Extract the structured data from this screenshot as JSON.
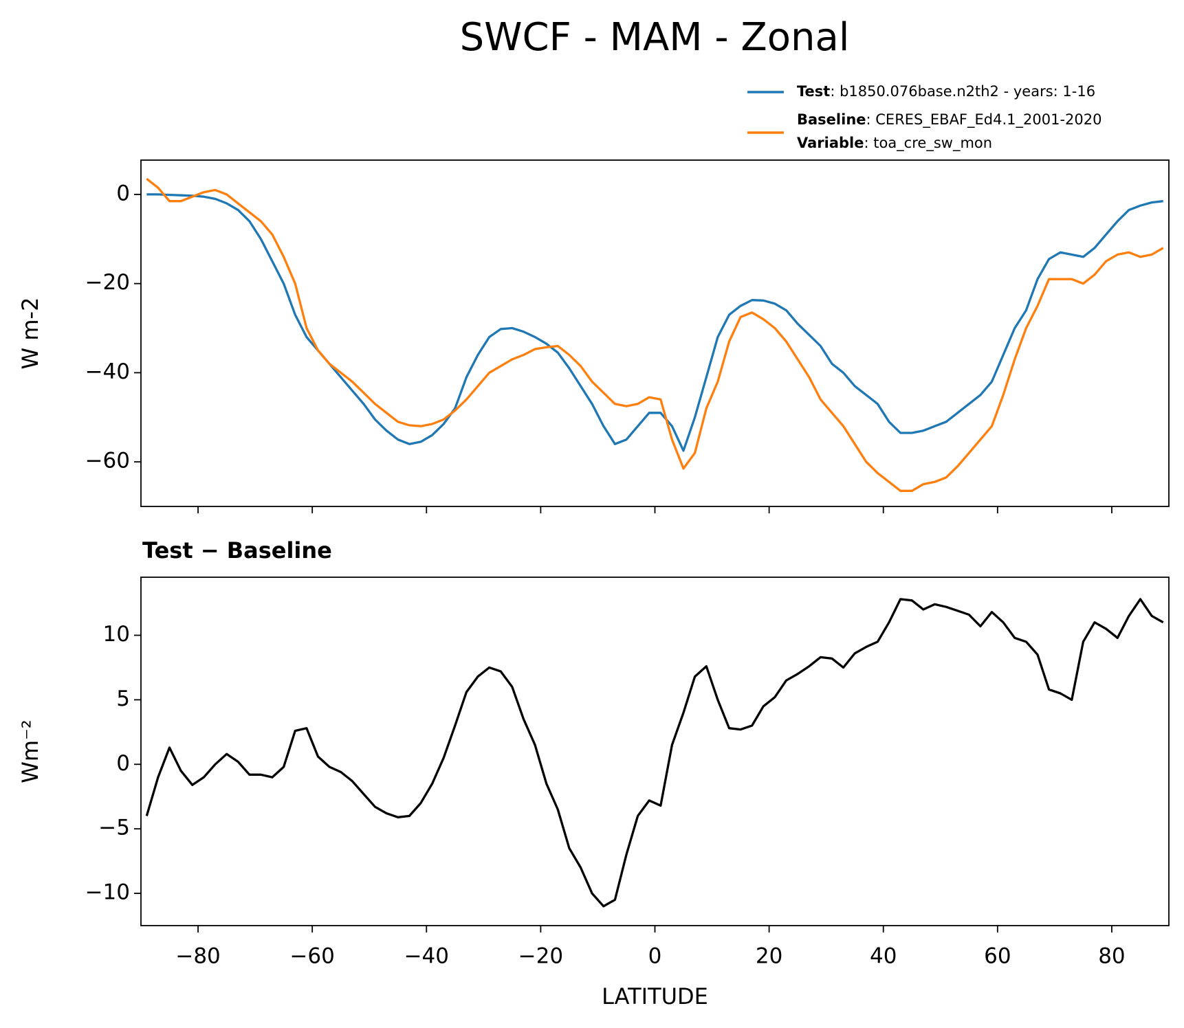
{
  "chart_data": [
    {
      "type": "line",
      "title": "SWCF - MAM - Zonal",
      "ylabel": "W m-2",
      "x": [
        -89,
        -87,
        -85,
        -83,
        -81,
        -79,
        -77,
        -75,
        -73,
        -71,
        -69,
        -67,
        -65,
        -63,
        -61,
        -59,
        -57,
        -55,
        -53,
        -51,
        -49,
        -47,
        -45,
        -43,
        -41,
        -39,
        -37,
        -35,
        -33,
        -31,
        -29,
        -27,
        -25,
        -23,
        -21,
        -19,
        -17,
        -15,
        -13,
        -11,
        -9,
        -7,
        -5,
        -3,
        -1,
        1,
        3,
        5,
        7,
        9,
        11,
        13,
        15,
        17,
        19,
        21,
        23,
        25,
        27,
        29,
        31,
        33,
        35,
        37,
        39,
        41,
        43,
        45,
        47,
        49,
        51,
        53,
        55,
        57,
        59,
        61,
        63,
        65,
        67,
        69,
        71,
        73,
        75,
        77,
        79,
        81,
        83,
        85,
        87,
        89
      ],
      "series": [
        {
          "name": "Test",
          "description": ": b1850.076base.n2th2 - years: 1-16",
          "color": "#1f77b4",
          "values": [
            0,
            0,
            -0.1,
            -0.2,
            -0.3,
            -0.5,
            -1,
            -2,
            -3.5,
            -6,
            -10,
            -15,
            -20,
            -27,
            -32,
            -35,
            -38,
            -41,
            -44,
            -47,
            -50.5,
            -53,
            -55,
            -56,
            -55.5,
            -54,
            -51.5,
            -48,
            -41,
            -36,
            -32,
            -30.2,
            -30,
            -30.8,
            -32,
            -33.5,
            -35.5,
            -39,
            -43,
            -47,
            -52,
            -56,
            -55,
            -52,
            -49,
            -49,
            -52,
            -57.5,
            -50,
            -41,
            -32,
            -27,
            -25,
            -23.7,
            -23.8,
            -24.5,
            -26,
            -29,
            -31.5,
            -34,
            -38,
            -40,
            -43,
            -45,
            -47,
            -51,
            -53.5,
            -53.5,
            -53,
            -52,
            -51,
            -49,
            -47,
            -45,
            -42,
            -36,
            -30,
            -26,
            -19,
            -14.5,
            -13,
            -13.5,
            -14,
            -12,
            -9,
            -6,
            -3.5,
            -2.5,
            -1.8,
            -1.5
          ]
        },
        {
          "name": "Baseline",
          "description": ": CERES_EBAF_Ed4.1_2001-2020",
          "color": "#ff7f0e",
          "values": [
            3.5,
            1.5,
            -1.5,
            -1.5,
            -0.5,
            0.5,
            1,
            0,
            -2,
            -4,
            -6,
            -9,
            -14,
            -20,
            -30,
            -35,
            -38,
            -40,
            -42,
            -44.5,
            -47,
            -49,
            -51,
            -51.8,
            -52,
            -51.5,
            -50.5,
            -48.5,
            -46,
            -43,
            -40,
            -38.5,
            -37,
            -36,
            -34.7,
            -34.3,
            -34,
            -36,
            -38.5,
            -42,
            -44.5,
            -47,
            -47.5,
            -47,
            -45.5,
            -46,
            -55,
            -61.5,
            -58,
            -48,
            -42,
            -33,
            -27.5,
            -26.5,
            -28,
            -30,
            -33,
            -37,
            -41,
            -46,
            -49,
            -52,
            -56,
            -60,
            -62.5,
            -64.5,
            -66.5,
            -66.5,
            -65,
            -64.5,
            -63.5,
            -61,
            -58,
            -55,
            -52,
            -45,
            -37,
            -30,
            -25,
            -19,
            -19,
            -19,
            -20,
            -18,
            -15,
            -13.5,
            -13,
            -14,
            -13.5,
            -12
          ]
        }
      ],
      "legend": {
        "corner": "upper right",
        "variable": {
          "name": "Variable",
          "text": ": toa_cre_sw_mon"
        }
      },
      "xlim": [
        -90,
        90
      ],
      "xticks": [
        -80,
        -60,
        -40,
        -20,
        0,
        20,
        40,
        60,
        80
      ],
      "xticklabels": false,
      "ylim": [
        -70,
        7.7
      ],
      "yticks": [
        0,
        {
          "value": -20,
          "label": "−20"
        },
        {
          "value": -40,
          "label": "−40"
        },
        {
          "value": -60,
          "label": "−60"
        }
      ]
    },
    {
      "type": "line",
      "title": "Test − Baseline",
      "xlabel": "LATITUDE",
      "ylabel": "Wm⁻²",
      "x": [
        -89,
        -87,
        -85,
        -83,
        -81,
        -79,
        -77,
        -75,
        -73,
        -71,
        -69,
        -67,
        -65,
        -63,
        -61,
        -59,
        -57,
        -55,
        -53,
        -51,
        -49,
        -47,
        -45,
        -43,
        -41,
        -39,
        -37,
        -35,
        -33,
        -31,
        -29,
        -27,
        -25,
        -23,
        -21,
        -19,
        -17,
        -15,
        -13,
        -11,
        -9,
        -7,
        -5,
        -3,
        -1,
        1,
        3,
        5,
        7,
        9,
        11,
        13,
        15,
        17,
        19,
        21,
        23,
        25,
        27,
        29,
        31,
        33,
        35,
        37,
        39,
        41,
        43,
        45,
        47,
        49,
        51,
        53,
        55,
        57,
        59,
        61,
        63,
        65,
        67,
        69,
        71,
        73,
        75,
        77,
        79,
        81,
        83,
        85,
        87,
        89
      ],
      "color": "#000000",
      "values": [
        -4,
        -1,
        1.3,
        -0.5,
        -1.6,
        -1,
        0,
        0.8,
        0.2,
        -0.8,
        -0.8,
        -1,
        -0.2,
        2.6,
        2.8,
        0.6,
        -0.2,
        -0.6,
        -1.3,
        -2.3,
        -3.3,
        -3.8,
        -4.1,
        -4,
        -3,
        -1.5,
        0.5,
        3,
        5.6,
        6.8,
        7.5,
        7.2,
        6,
        3.5,
        1.5,
        -1.5,
        -3.5,
        -6.5,
        -8,
        -10,
        -11,
        -10.5,
        -7,
        -4,
        -2.8,
        -3.2,
        1.5,
        4,
        6.8,
        7.6,
        5,
        2.8,
        2.7,
        3,
        4.5,
        5.2,
        6.5,
        7,
        7.6,
        8.3,
        8.2,
        7.5,
        8.6,
        9.1,
        9.5,
        11,
        12.8,
        12.7,
        12,
        12.4,
        12.2,
        11.9,
        11.6,
        10.7,
        11.8,
        11,
        9.8,
        9.5,
        8.5,
        5.8,
        5.5,
        5,
        9.5,
        11,
        10.5,
        9.8,
        11.5,
        12.8,
        11.5,
        11
      ],
      "xlim": [
        -90,
        90
      ],
      "xticks": [
        {
          "value": -80,
          "label": "−80"
        },
        {
          "value": -60,
          "label": "−60"
        },
        {
          "value": -40,
          "label": "−40"
        },
        {
          "value": -20,
          "label": "−20"
        },
        0,
        20,
        40,
        60,
        80
      ],
      "ylim": [
        -12.5,
        14.5
      ],
      "yticks": [
        {
          "value": -10,
          "label": "−10"
        },
        {
          "value": -5,
          "label": "−5"
        },
        0,
        5,
        10
      ]
    }
  ]
}
